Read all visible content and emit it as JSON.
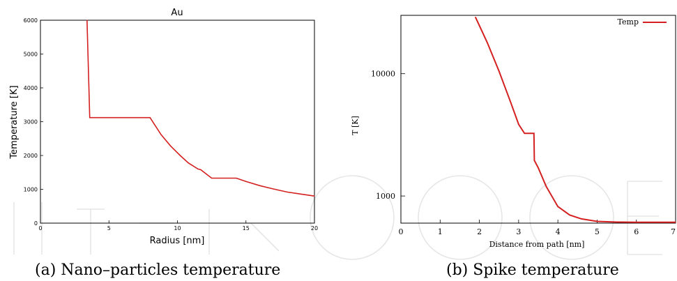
{
  "chart_data": [
    {
      "type": "line",
      "title": "Au",
      "xlabel": "Radius [nm]",
      "ylabel": "Temperature [K]",
      "xlim": [
        0,
        20
      ],
      "ylim": [
        0,
        6000
      ],
      "xticks": [
        "0",
        "5",
        "10",
        "15",
        "20"
      ],
      "yticks": [
        "0",
        "1000",
        "2000",
        "3000",
        "4000",
        "5000",
        "6000"
      ],
      "grid": false,
      "line_color": "#d42020",
      "series": [
        {
          "x": [
            3.4,
            3.55,
            3.6,
            4.5,
            6,
            8,
            8.8,
            9.5,
            10.2,
            10.8,
            11.5,
            11.7,
            12.5,
            14.3,
            15,
            16,
            17,
            18,
            19,
            20
          ],
          "values": [
            6000,
            3800,
            3120,
            3120,
            3120,
            3120,
            2620,
            2280,
            2000,
            1780,
            1600,
            1580,
            1330,
            1330,
            1230,
            1110,
            1010,
            920,
            860,
            800
          ]
        }
      ],
      "caption": "(a)  Nano–particles temperature"
    },
    {
      "type": "line",
      "title": "",
      "xlabel": "Distance from path [nm]",
      "ylabel": "T [K]",
      "xlim": [
        0,
        7
      ],
      "ylim": [
        600,
        30000
      ],
      "yscale": "log",
      "xticks": [
        "0",
        "1",
        "2",
        "3",
        "4",
        "5",
        "6",
        "7"
      ],
      "yticks": [
        "1000",
        "10000"
      ],
      "grid": false,
      "legend": "top-right",
      "line_color": "#d42020",
      "series": [
        {
          "name": "Temp",
          "x": [
            1.9,
            2.2,
            2.5,
            2.8,
            3.0,
            3.15,
            3.3,
            3.35,
            3.39,
            3.4,
            3.41,
            3.5,
            3.7,
            4.0,
            4.3,
            4.6,
            5.0,
            5.5,
            6.0,
            7.0
          ],
          "values": [
            29000,
            18000,
            10500,
            5800,
            3850,
            3250,
            3250,
            3250,
            3250,
            1950,
            1930,
            1700,
            1200,
            820,
            700,
            650,
            620,
            612,
            610,
            610
          ]
        }
      ],
      "caption": "(b)  Spike temperature"
    }
  ]
}
